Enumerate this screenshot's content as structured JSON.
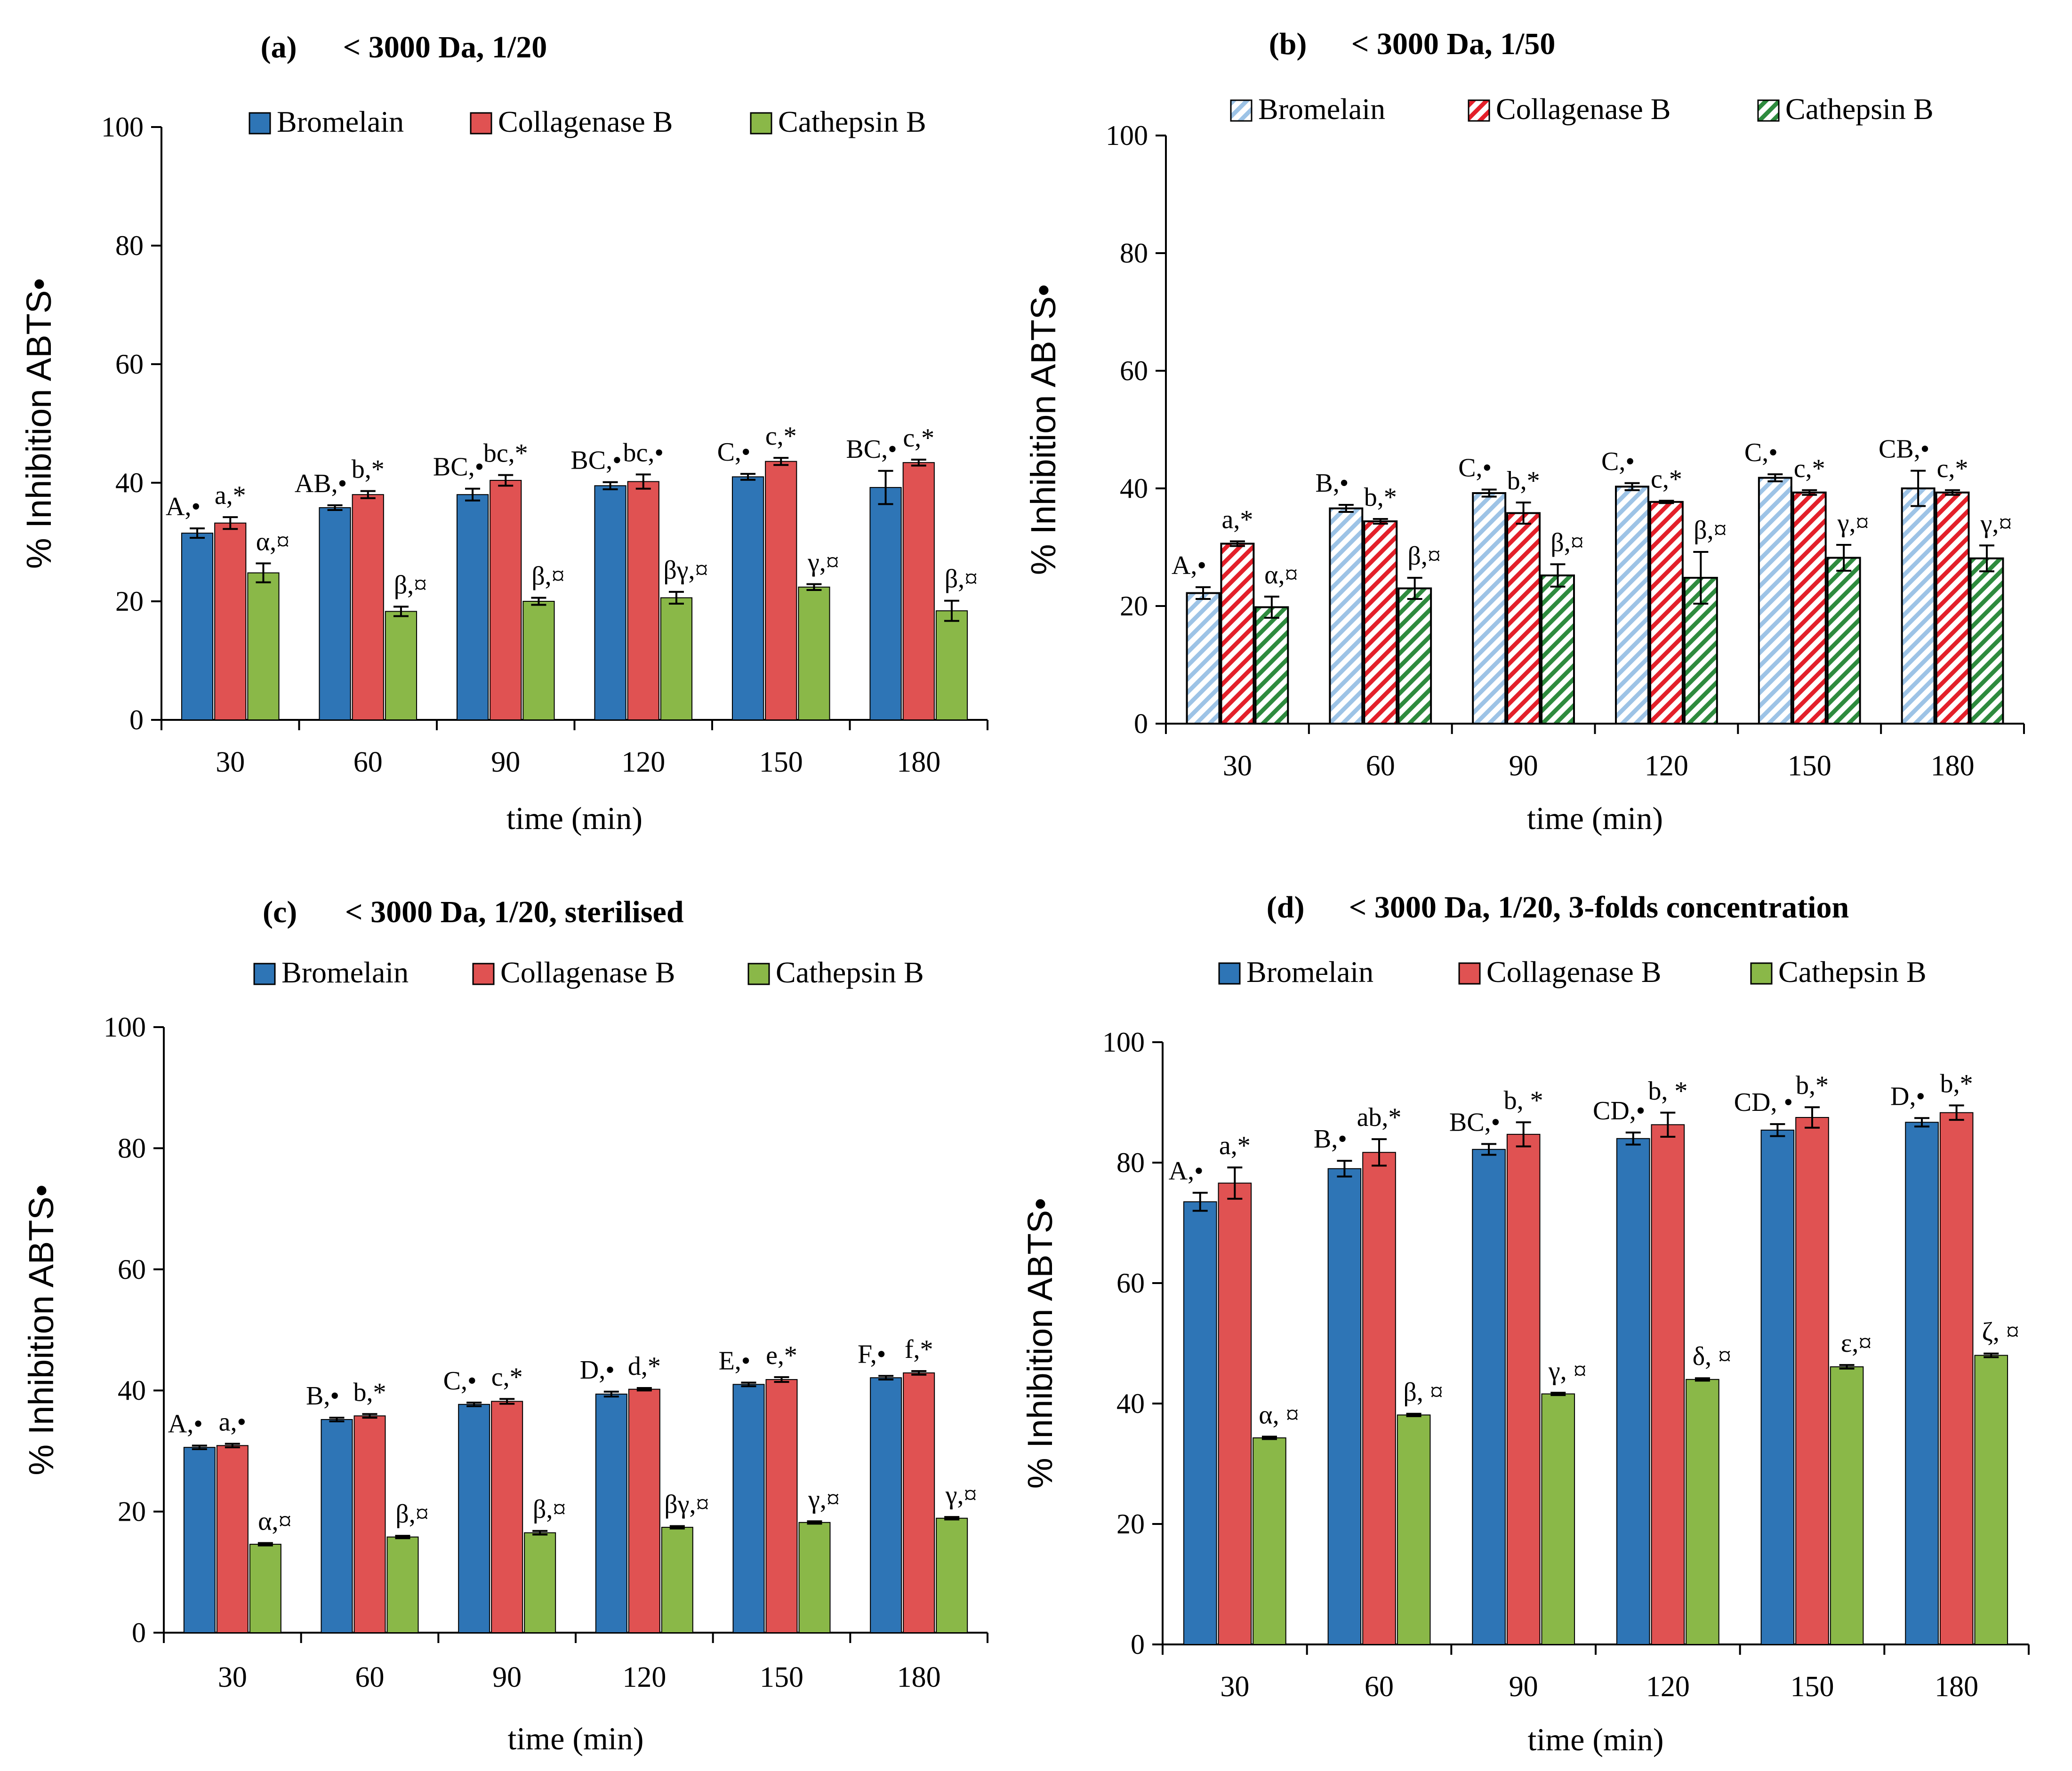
{
  "chart_data": [
    {
      "type": "bar",
      "panel_label": "(a)",
      "title": "< 3000 Da, 1/20",
      "xlabel": "time (min)",
      "ylabel": "% Inhibition ABTS•",
      "ylim": [
        0,
        100
      ],
      "yticks": [
        "0",
        "20",
        "40",
        "60",
        "80",
        "100"
      ],
      "categories": [
        "30",
        "60",
        "90",
        "120",
        "150",
        "180"
      ],
      "legend_position": "top",
      "bar_style": "solid",
      "series": [
        {
          "name": "Bromelain",
          "color": "#2e75b6",
          "values": [
            31.5,
            35.8,
            38.0,
            39.5,
            41.0,
            39.2
          ],
          "errors": [
            0.8,
            0.4,
            1.0,
            0.6,
            0.5,
            2.8
          ],
          "labels": [
            "A,•",
            "AB,•",
            "BC,•",
            "BC,•",
            "C,•",
            "BC,•"
          ]
        },
        {
          "name": "Collagenase B",
          "color": "#e05252",
          "values": [
            33.2,
            38.0,
            40.4,
            40.2,
            43.6,
            43.4
          ],
          "errors": [
            1.0,
            0.6,
            0.9,
            1.2,
            0.6,
            0.5
          ],
          "labels": [
            "a,*",
            "b,*",
            "bc,*",
            "bc,•",
            "c,*",
            "c,*"
          ]
        },
        {
          "name": "Cathepsin B",
          "color": "#8ab848",
          "values": [
            24.8,
            18.3,
            20.0,
            20.6,
            22.4,
            18.4
          ],
          "errors": [
            1.6,
            0.8,
            0.6,
            1.0,
            0.5,
            1.7
          ],
          "labels": [
            "α,¤",
            "β,¤",
            "β,¤",
            "βγ,¤",
            "γ,¤",
            "β,¤"
          ]
        }
      ]
    },
    {
      "type": "bar",
      "panel_label": "(b)",
      "title": "< 3000 Da, 1/50",
      "xlabel": "time (min)",
      "ylabel": "% Inhibition ABTS•",
      "ylim": [
        0,
        100
      ],
      "yticks": [
        "0",
        "20",
        "40",
        "60",
        "80",
        "100"
      ],
      "categories": [
        "30",
        "60",
        "90",
        "120",
        "150",
        "180"
      ],
      "legend_position": "top",
      "bar_style": "hatched",
      "series": [
        {
          "name": "Bromelain",
          "color": "#9dc3e6",
          "values": [
            22.2,
            36.6,
            39.2,
            40.3,
            41.8,
            40.0
          ],
          "errors": [
            1.0,
            0.6,
            0.6,
            0.6,
            0.6,
            3.0
          ],
          "labels": [
            "A,•",
            "B,•",
            "C,•",
            "C,•",
            "C,•",
            "CB,•"
          ]
        },
        {
          "name": "Collagenase B",
          "color": "#e3202a",
          "values": [
            30.6,
            34.4,
            35.8,
            37.7,
            39.3,
            39.3
          ],
          "errors": [
            0.4,
            0.4,
            1.8,
            0.2,
            0.4,
            0.4
          ],
          "labels": [
            "a,*",
            "b,*",
            "b,*",
            "c,*",
            "c,*",
            "c,*"
          ]
        },
        {
          "name": "Cathepsin B",
          "color": "#2e8b3e",
          "values": [
            19.8,
            23.0,
            25.2,
            24.8,
            28.2,
            28.1
          ],
          "errors": [
            1.8,
            1.8,
            1.9,
            4.4,
            2.2,
            2.2
          ],
          "labels": [
            "α,¤",
            "β,¤",
            "β,¤",
            "β,¤",
            "γ,¤",
            "γ,¤"
          ]
        }
      ]
    },
    {
      "type": "bar",
      "panel_label": "(c)",
      "title": "< 3000 Da, 1/20, sterilised",
      "xlabel": "time (min)",
      "ylabel": "% Inhibition ABTS•",
      "ylim": [
        0,
        100
      ],
      "yticks": [
        "0",
        "20",
        "40",
        "60",
        "80",
        "100"
      ],
      "categories": [
        "30",
        "60",
        "90",
        "120",
        "150",
        "180"
      ],
      "legend_position": "top",
      "bar_style": "solid",
      "series": [
        {
          "name": "Bromelain",
          "color": "#2e75b6",
          "values": [
            30.6,
            35.2,
            37.7,
            39.4,
            41.0,
            42.1
          ],
          "errors": [
            0.3,
            0.3,
            0.3,
            0.4,
            0.3,
            0.3
          ],
          "labels": [
            "A,•",
            "B,•",
            "C,•",
            "D,•",
            "E,•",
            "F,•"
          ]
        },
        {
          "name": "Collagenase B",
          "color": "#e05252",
          "values": [
            30.9,
            35.8,
            38.2,
            40.2,
            41.8,
            42.9
          ],
          "errors": [
            0.3,
            0.3,
            0.4,
            0.2,
            0.4,
            0.3
          ],
          "labels": [
            "a,•",
            "b,*",
            "c,*",
            "d,*",
            "e,*",
            "f,*"
          ]
        },
        {
          "name": "Cathepsin B",
          "color": "#8ab848",
          "values": [
            14.6,
            15.8,
            16.5,
            17.4,
            18.2,
            18.9
          ],
          "errors": [
            0.2,
            0.2,
            0.3,
            0.2,
            0.2,
            0.2
          ],
          "labels": [
            "α,¤",
            "β,¤",
            "β,¤",
            "βγ,¤",
            "γ,¤",
            "γ,¤"
          ]
        }
      ]
    },
    {
      "type": "bar",
      "panel_label": "(d)",
      "title": "< 3000 Da, 1/20, 3-folds concentration",
      "xlabel": "time (min)",
      "ylabel": "% Inhibition ABTS•",
      "ylim": [
        0,
        100
      ],
      "yticks": [
        "0",
        "20",
        "40",
        "60",
        "80",
        "100"
      ],
      "categories": [
        "30",
        "60",
        "90",
        "120",
        "150",
        "180"
      ],
      "legend_position": "top",
      "bar_style": "solid",
      "series": [
        {
          "name": "Bromelain",
          "color": "#2e75b6",
          "values": [
            73.5,
            79.0,
            82.2,
            84.0,
            85.4,
            86.7
          ],
          "errors": [
            1.5,
            1.3,
            0.9,
            1.0,
            1.0,
            0.7
          ],
          "labels": [
            "A,•",
            "B,•",
            "BC,•",
            "CD,•",
            "CD, •",
            "D,•"
          ]
        },
        {
          "name": "Collagenase B",
          "color": "#e05252",
          "values": [
            76.6,
            81.7,
            84.7,
            86.3,
            87.5,
            88.3
          ],
          "errors": [
            2.6,
            2.2,
            2.0,
            2.0,
            1.7,
            1.2
          ],
          "labels": [
            "a,*",
            "ab,*",
            "b, *",
            "b, *",
            "b,*",
            "b,*"
          ]
        },
        {
          "name": "Cathepsin B",
          "color": "#8ab848",
          "values": [
            34.3,
            38.1,
            41.6,
            44.0,
            46.1,
            48.0
          ],
          "errors": [
            0.2,
            0.2,
            0.2,
            0.2,
            0.3,
            0.3
          ],
          "labels": [
            "α, ¤",
            "β, ¤",
            "γ, ¤",
            "δ, ¤",
            "ε,¤",
            "ζ, ¤"
          ]
        }
      ]
    }
  ]
}
